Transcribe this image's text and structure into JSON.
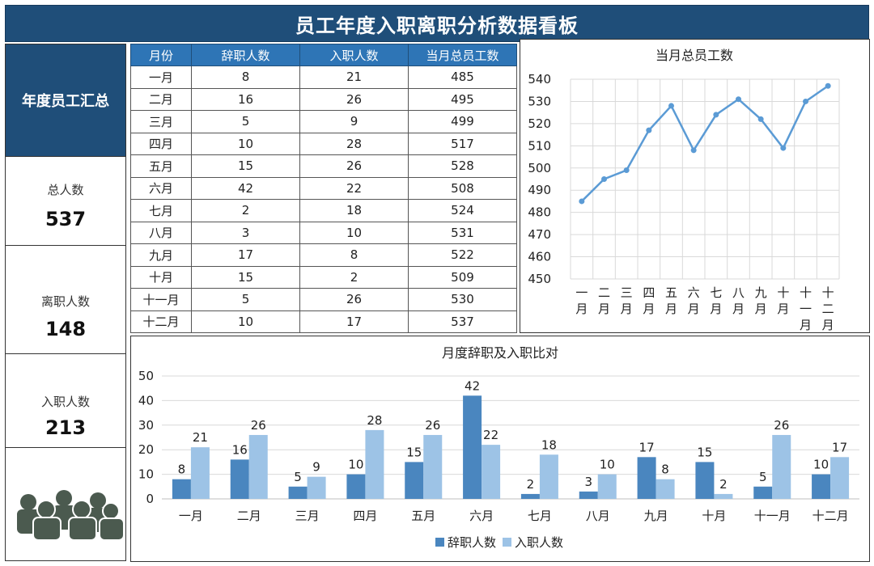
{
  "title": "员工年度入职离职分析数据看板",
  "summary": {
    "header": "年度员工汇总",
    "total_label": "总人数",
    "total_value": "537",
    "resign_label": "离职人数",
    "resign_value": "148",
    "hire_label": "入职人数",
    "hire_value": "213",
    "icon": "people-group-icon"
  },
  "table": {
    "headers": [
      "月份",
      "辞职人数",
      "入职人数",
      "当月总员工数"
    ],
    "rows": [
      [
        "一月",
        "8",
        "21",
        "485"
      ],
      [
        "二月",
        "16",
        "26",
        "495"
      ],
      [
        "三月",
        "5",
        "9",
        "499"
      ],
      [
        "四月",
        "10",
        "28",
        "517"
      ],
      [
        "五月",
        "15",
        "26",
        "528"
      ],
      [
        "六月",
        "42",
        "22",
        "508"
      ],
      [
        "七月",
        "2",
        "18",
        "524"
      ],
      [
        "八月",
        "3",
        "10",
        "531"
      ],
      [
        "九月",
        "17",
        "8",
        "522"
      ],
      [
        "十月",
        "15",
        "2",
        "509"
      ],
      [
        "十一月",
        "5",
        "26",
        "530"
      ],
      [
        "十二月",
        "10",
        "17",
        "537"
      ]
    ]
  },
  "chart_data": [
    {
      "type": "line",
      "title": "当月总员工数",
      "categories": [
        "一月",
        "二月",
        "三月",
        "四月",
        "五月",
        "六月",
        "七月",
        "八月",
        "九月",
        "十月",
        "十一月",
        "十二月"
      ],
      "values": [
        485,
        495,
        499,
        517,
        528,
        508,
        524,
        531,
        522,
        509,
        530,
        537
      ],
      "ylim": [
        450,
        540
      ],
      "yticks": [
        450,
        460,
        470,
        480,
        490,
        500,
        510,
        520,
        530,
        540
      ],
      "grid": true,
      "color": "#5b9bd5"
    },
    {
      "type": "bar",
      "title": "月度辞职及入职比对",
      "categories": [
        "一月",
        "二月",
        "三月",
        "四月",
        "五月",
        "六月",
        "七月",
        "八月",
        "九月",
        "十月",
        "十一月",
        "十二月"
      ],
      "series": [
        {
          "name": "辞职人数",
          "values": [
            8,
            16,
            5,
            10,
            15,
            42,
            2,
            3,
            17,
            15,
            5,
            10
          ],
          "color": "#4a86bf"
        },
        {
          "name": "入职人数",
          "values": [
            21,
            26,
            9,
            28,
            26,
            22,
            18,
            10,
            8,
            2,
            26,
            17
          ],
          "color": "#9dc3e6"
        }
      ],
      "ylim": [
        0,
        50
      ],
      "yticks": [
        0,
        10,
        20,
        30,
        40,
        50
      ],
      "grid": true,
      "legend": "bottom"
    }
  ]
}
